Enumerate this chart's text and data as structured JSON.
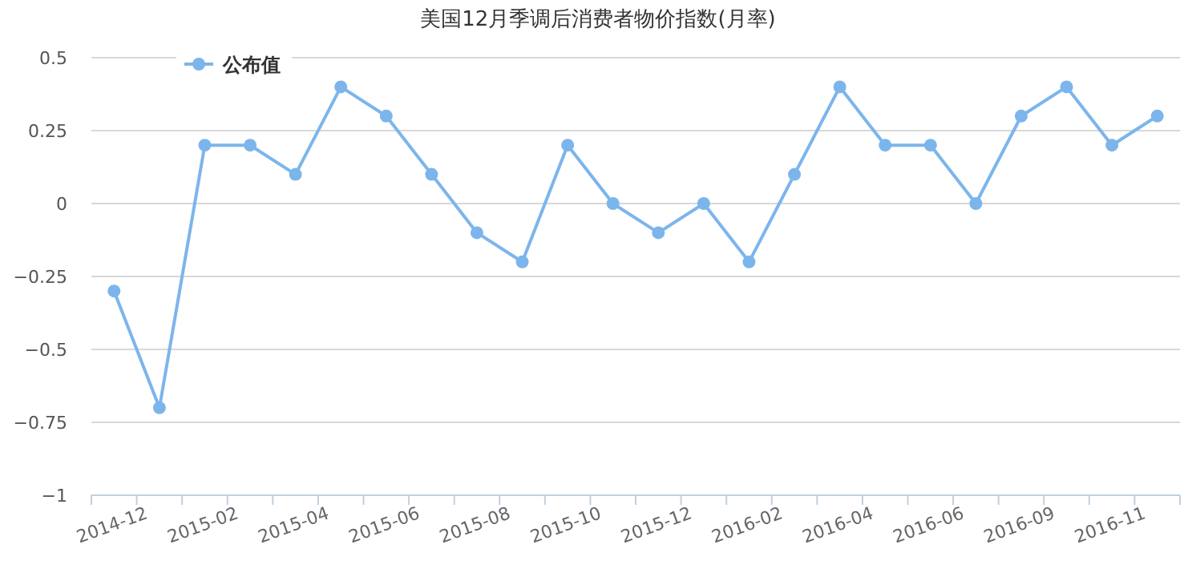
{
  "chart_data": {
    "type": "line",
    "title": "美国12月季调后消费者物价指数(月率)",
    "categories": [
      "2014-12",
      null,
      "2015-02",
      null,
      "2015-04",
      null,
      "2015-06",
      null,
      "2015-08",
      null,
      "2015-10",
      null,
      "2015-12",
      null,
      "2016-02",
      null,
      "2016-04",
      null,
      "2016-06",
      null,
      "2016-09",
      null,
      "2016-11",
      null
    ],
    "series": [
      {
        "name": "公布值",
        "color": "#7cb5ec",
        "values": [
          -0.3,
          -0.7,
          0.2,
          0.2,
          0.1,
          0.4,
          0.3,
          0.1,
          -0.1,
          -0.2,
          0.2,
          0,
          -0.1,
          0,
          -0.2,
          0.1,
          0.4,
          0.2,
          0.2,
          0,
          0.3,
          0.4,
          0.2,
          0.3
        ]
      }
    ],
    "ylim": [
      -1,
      0.5
    ],
    "yticks": [
      {
        "value": -1,
        "label": "−1"
      },
      {
        "value": -0.75,
        "label": "−0.75"
      },
      {
        "value": -0.5,
        "label": "−0.5"
      },
      {
        "value": -0.25,
        "label": "−0.25"
      },
      0,
      0.25,
      0.5
    ],
    "grid": "y",
    "legend": "top left",
    "marker": "circle",
    "line_style": "solid"
  }
}
